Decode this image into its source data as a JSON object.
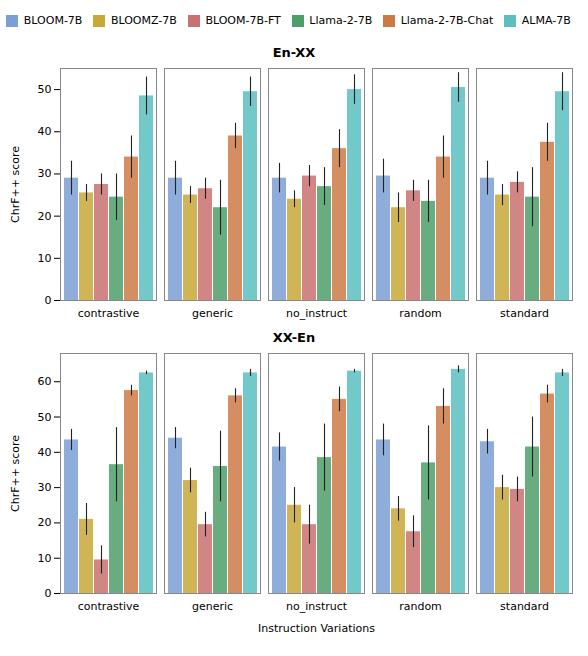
{
  "chart_data": [
    {
      "type": "bar",
      "title": "En-XX",
      "categories": [
        "contrastive",
        "generic",
        "no_instruct",
        "random",
        "standard"
      ],
      "ylabel": "ChrF++ score",
      "legend": "top",
      "series": [
        {
          "name": "BLOOM-7B",
          "color": "#7b9fd4",
          "values": [
            29.0,
            29.0,
            29.0,
            29.5,
            29.0
          ],
          "errors": [
            4.0,
            4.0,
            3.5,
            4.0,
            4.0
          ]
        },
        {
          "name": "BLOOMZ-7B",
          "color": "#c8a838",
          "values": [
            25.5,
            25.0,
            24.0,
            22.0,
            25.0
          ],
          "errors": [
            2.0,
            2.0,
            2.0,
            3.5,
            2.5
          ]
        },
        {
          "name": "BLOOM-7B-FT",
          "color": "#c97070",
          "values": [
            27.5,
            26.5,
            29.5,
            26.0,
            28.0
          ],
          "errors": [
            2.5,
            2.5,
            2.5,
            2.5,
            2.5
          ]
        },
        {
          "name": "Llama-2-7B",
          "color": "#4e9e6a",
          "values": [
            24.5,
            22.0,
            27.0,
            23.5,
            24.5
          ],
          "errors": [
            5.5,
            6.5,
            4.5,
            5.0,
            7.0
          ]
        },
        {
          "name": "Llama-2-7B-Chat",
          "color": "#cc7a45",
          "values": [
            34.0,
            39.0,
            36.0,
            34.0,
            37.5
          ],
          "errors": [
            5.0,
            3.0,
            4.5,
            5.0,
            4.5
          ]
        },
        {
          "name": "ALMA-7B",
          "color": "#5bbfbf",
          "values": [
            48.5,
            49.5,
            50.0,
            50.5,
            49.5
          ],
          "errors": [
            4.5,
            3.5,
            3.5,
            3.5,
            4.5
          ]
        }
      ],
      "ylim": [
        0,
        55
      ],
      "yticks": [
        0,
        10,
        20,
        30,
        40,
        50
      ],
      "grid": false
    },
    {
      "type": "bar",
      "title": "XX-En",
      "categories": [
        "contrastive",
        "generic",
        "no_instruct",
        "random",
        "standard"
      ],
      "ylabel": "ChrF++ score",
      "xlabel": "Instruction Variations",
      "series": [
        {
          "name": "BLOOM-7B",
          "color": "#7b9fd4",
          "values": [
            43.5,
            44.0,
            41.5,
            43.5,
            43.0
          ],
          "errors": [
            3.0,
            3.0,
            4.0,
            4.5,
            3.5
          ]
        },
        {
          "name": "BLOOMZ-7B",
          "color": "#c8a838",
          "values": [
            21.0,
            32.0,
            25.0,
            24.0,
            30.0
          ],
          "errors": [
            4.5,
            3.5,
            5.0,
            3.5,
            3.5
          ]
        },
        {
          "name": "BLOOM-7B-FT",
          "color": "#c97070",
          "values": [
            9.5,
            19.5,
            19.5,
            17.5,
            29.5
          ],
          "errors": [
            4.0,
            3.5,
            5.5,
            4.5,
            3.5
          ]
        },
        {
          "name": "Llama-2-7B",
          "color": "#4e9e6a",
          "values": [
            36.5,
            36.0,
            38.5,
            37.0,
            41.5
          ],
          "errors": [
            10.5,
            10.0,
            9.5,
            10.5,
            8.5
          ]
        },
        {
          "name": "Llama-2-7B-Chat",
          "color": "#cc7a45",
          "values": [
            57.5,
            56.0,
            55.0,
            53.0,
            56.5
          ],
          "errors": [
            1.5,
            2.0,
            3.5,
            5.0,
            2.5
          ]
        },
        {
          "name": "ALMA-7B",
          "color": "#5bbfbf",
          "values": [
            62.5,
            62.5,
            63.0,
            63.5,
            62.5
          ],
          "errors": [
            0.5,
            1.0,
            0.5,
            1.0,
            1.0
          ]
        }
      ],
      "ylim": [
        0,
        68
      ],
      "yticks": [
        0,
        10,
        20,
        30,
        40,
        50,
        60
      ],
      "grid": false
    }
  ]
}
